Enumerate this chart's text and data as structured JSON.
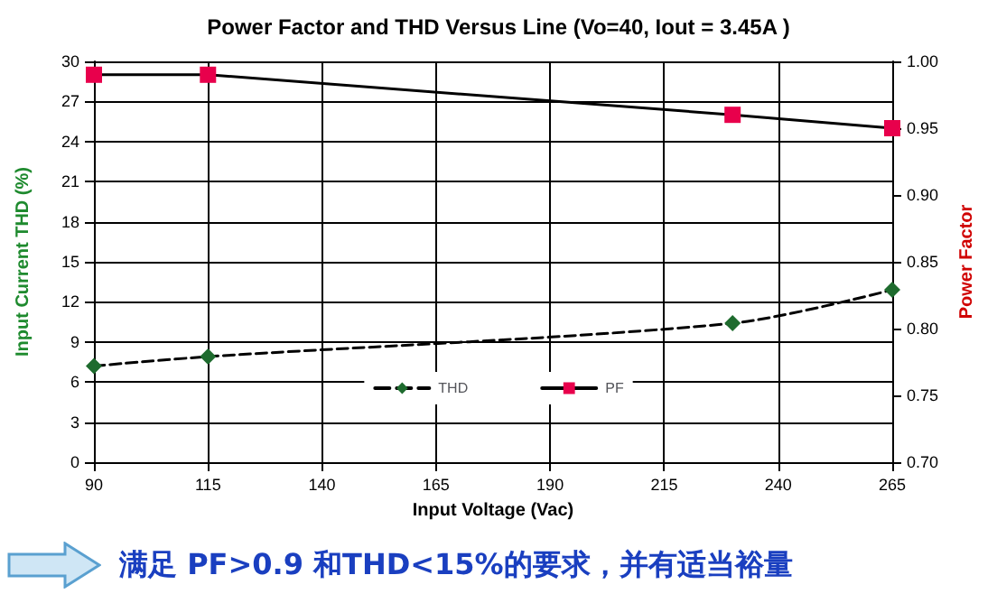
{
  "chart_data": {
    "type": "line",
    "title": "Power Factor and THD Versus Line (Vo=40, Iout = 3.45A )",
    "x": [
      90,
      115,
      230,
      265
    ],
    "series": [
      {
        "name": "THD",
        "color": "#1e6b2e",
        "values": [
          7.2,
          7.9,
          10.4,
          12.9
        ],
        "marker": "diamond",
        "line_style": "dashed"
      },
      {
        "name": "PF",
        "color": "#e8004c",
        "values": [
          0.99,
          0.99,
          0.96,
          0.95
        ],
        "axis": "y2",
        "marker": "square",
        "line_style": "solid"
      }
    ],
    "xlabel": "Input Voltage (Vac)",
    "ylabel": "Input Current THD (%)",
    "y2label": "Power Factor",
    "xlim": [
      90,
      265
    ],
    "xticks": [
      90,
      115,
      140,
      165,
      190,
      215,
      240,
      265
    ],
    "ylim": [
      0,
      30
    ],
    "yticks": [
      0,
      3,
      6,
      9,
      12,
      15,
      18,
      21,
      24,
      27,
      30
    ],
    "y2lim": [
      0.7,
      1.0
    ],
    "y2ticks": [
      {
        "value": 0.7,
        "label": "0.70"
      },
      {
        "value": 0.75,
        "label": "0.75"
      },
      {
        "value": 0.8,
        "label": "0.80"
      },
      {
        "value": 0.85,
        "label": "0.85"
      },
      {
        "value": 0.9,
        "label": "0.90"
      },
      {
        "value": 0.95,
        "label": "0.95"
      },
      {
        "value": 1.0,
        "label": "1.00"
      }
    ],
    "grid": true,
    "legend": "bottom",
    "annotations": [
      "满足 PF>0.9 和THD<15%的要求，并有适当裕量"
    ]
  }
}
